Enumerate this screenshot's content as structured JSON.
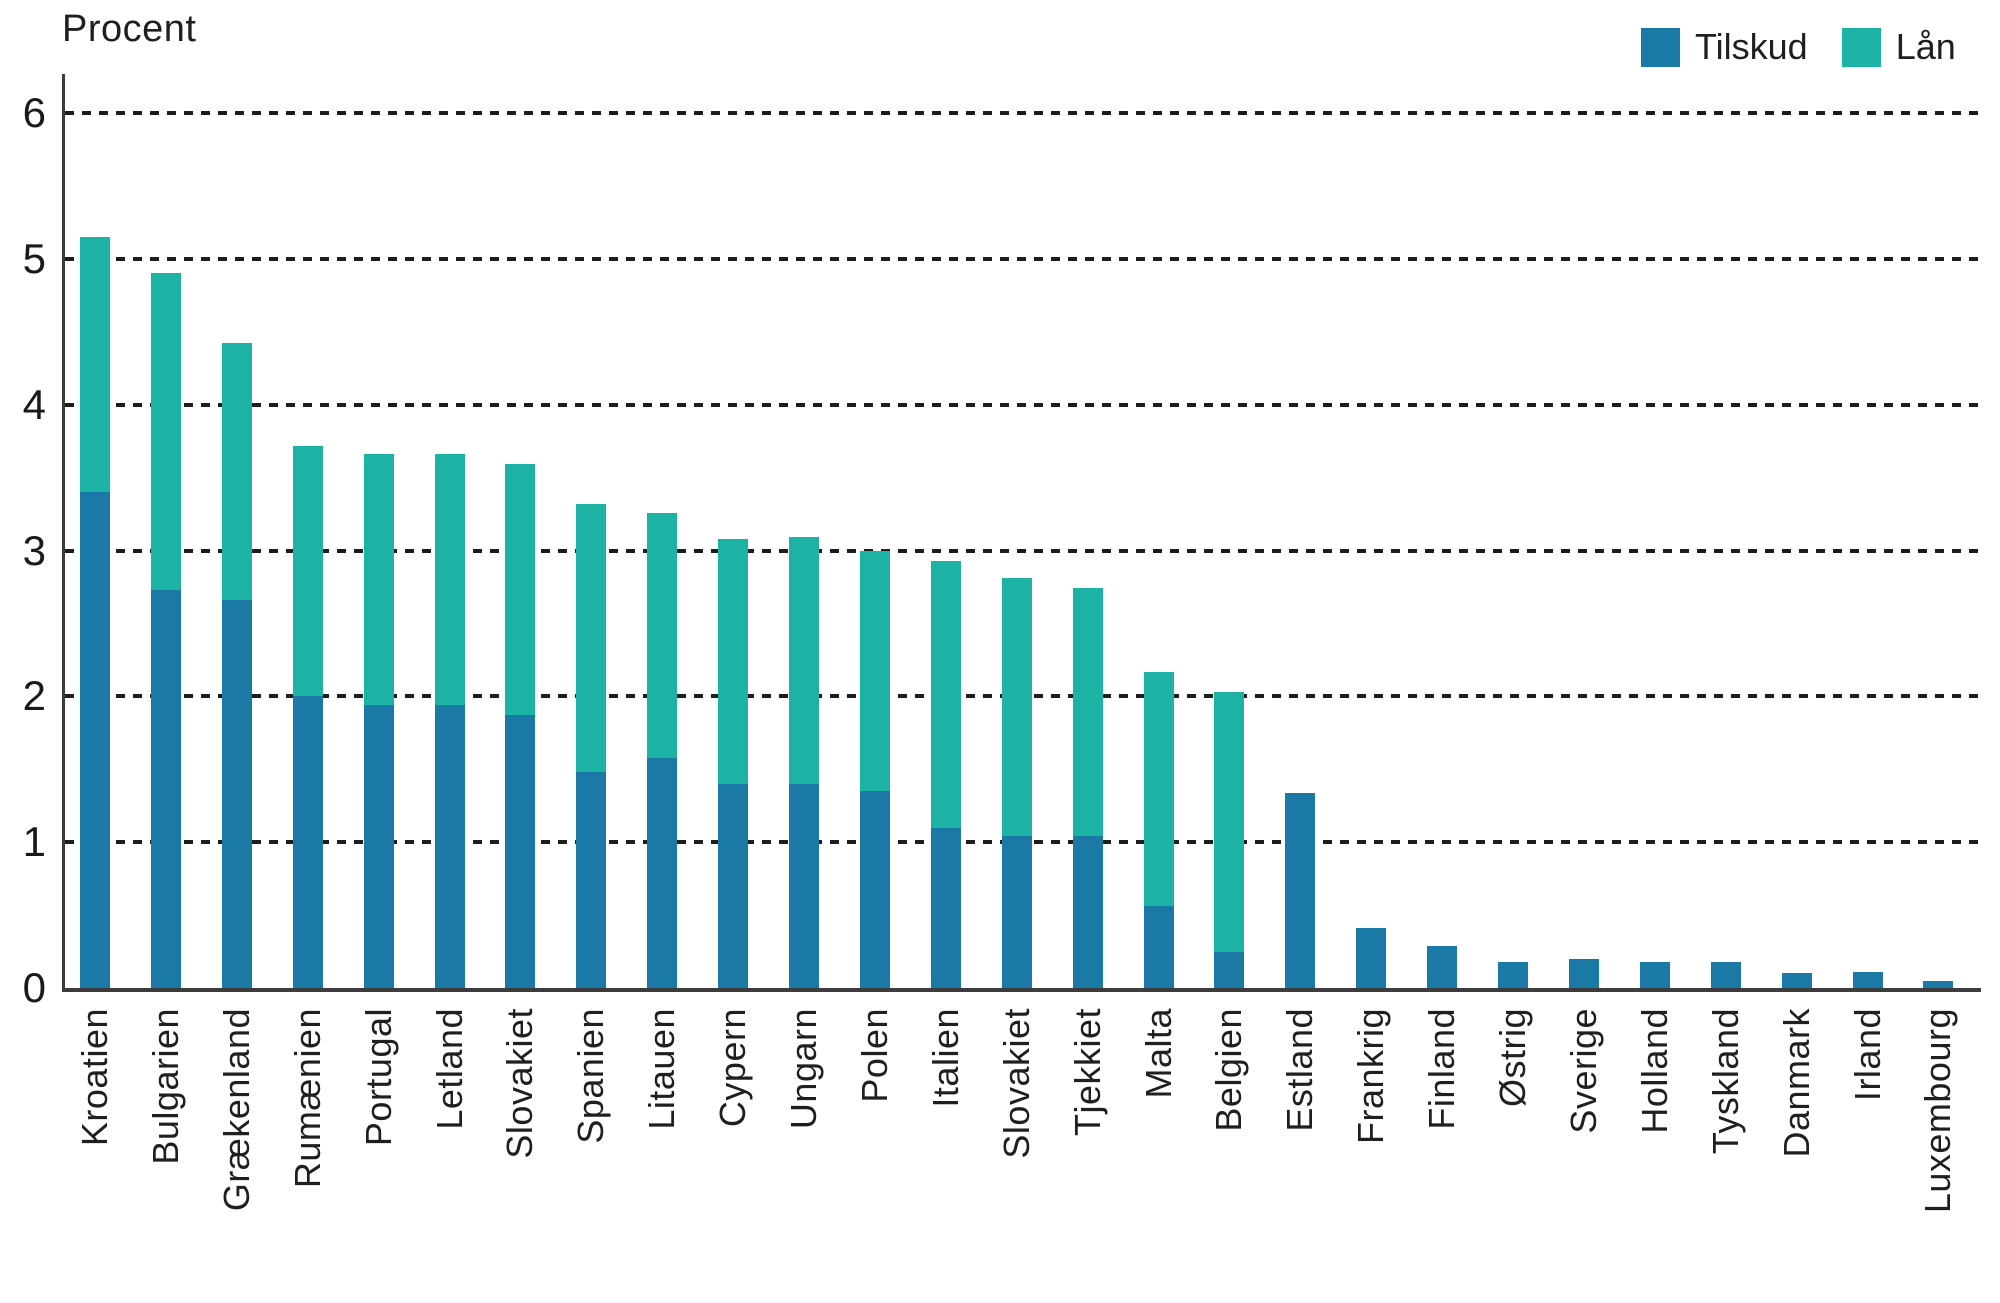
{
  "chart_data": {
    "type": "bar",
    "stacked": true,
    "title": "Procent",
    "ylabel": "Procent",
    "xlabel": "",
    "grid": "horizontal-dashed",
    "legend_position": "top-right",
    "yticks": [
      0,
      1,
      2,
      3,
      4,
      5,
      6
    ],
    "ylim": [
      0,
      6.3
    ],
    "categories": [
      "Kroatien",
      "Bulgarien",
      "Grækenland",
      "Rumænien",
      "Portugal",
      "Letland",
      "Slovakiet",
      "Spanien",
      "Litauen",
      "Cypern",
      "Ungarn",
      "Polen",
      "Italien",
      "Slovakiet",
      "Tjekkiet",
      "Malta",
      "Belgien",
      "Estland",
      "Frankrig",
      "Finland",
      "Østrig",
      "Sverige",
      "Holland",
      "Tyskland",
      "Danmark",
      "Irland",
      "Luxembourg"
    ],
    "series": [
      {
        "name": "Tilskud",
        "color": "#1b79a5",
        "values": [
          3.4,
          2.73,
          2.66,
          2.0,
          1.94,
          1.94,
          1.87,
          1.48,
          1.58,
          1.4,
          1.4,
          1.35,
          1.1,
          1.04,
          1.04,
          0.56,
          0.25,
          1.34,
          0.41,
          0.29,
          0.18,
          0.2,
          0.18,
          0.18,
          0.1,
          0.11,
          0.05
        ]
      },
      {
        "name": "Lån",
        "color": "#1cb3a5",
        "values": [
          1.75,
          2.17,
          1.76,
          1.72,
          1.72,
          1.72,
          1.72,
          1.84,
          1.68,
          1.68,
          1.69,
          1.65,
          1.83,
          1.77,
          1.7,
          1.61,
          1.78,
          0,
          0,
          0,
          0,
          0,
          0,
          0,
          0,
          0,
          0
        ]
      }
    ],
    "totals": [
      5.15,
      4.9,
      4.42,
      3.72,
      3.66,
      3.66,
      3.59,
      3.32,
      3.26,
      3.08,
      3.09,
      3.0,
      2.93,
      2.81,
      2.74,
      2.17,
      2.03,
      1.34,
      0.41,
      0.29,
      0.18,
      0.2,
      0.18,
      0.18,
      0.1,
      0.11,
      0.05
    ]
  }
}
